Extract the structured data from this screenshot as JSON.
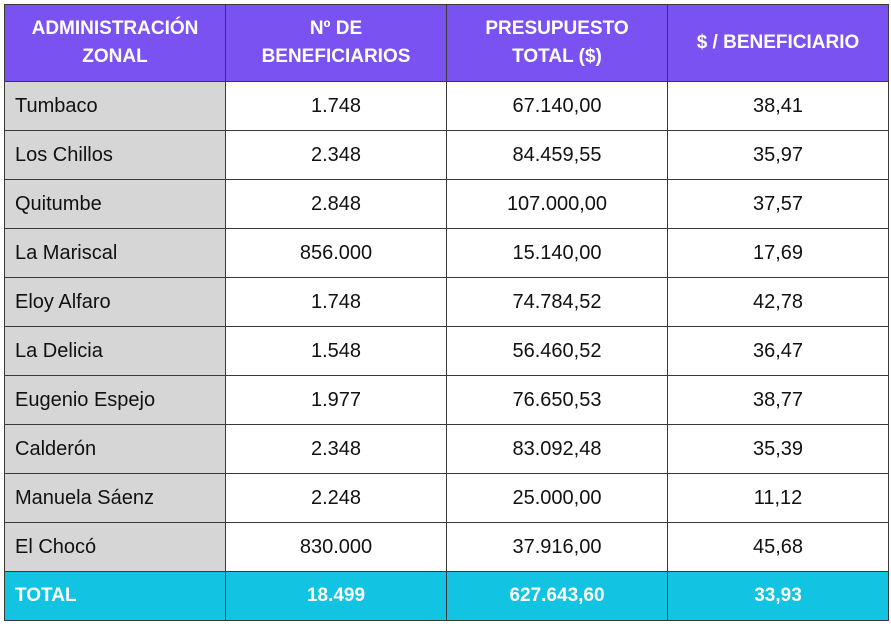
{
  "table": {
    "headers": [
      [
        "ADMINISTRACIÓN",
        "ZONAL"
      ],
      [
        "Nº DE",
        "BENEFICIARIOS"
      ],
      [
        "PRESUPUESTO",
        "TOTAL ($)"
      ],
      [
        "$ / BENEFICIARIO"
      ]
    ],
    "rows": [
      [
        "Tumbaco",
        "1.748",
        "67.140,00",
        "38,41"
      ],
      [
        "Los Chillos",
        "2.348",
        "84.459,55",
        "35,97"
      ],
      [
        "Quitumbe",
        "2.848",
        "107.000,00",
        "37,57"
      ],
      [
        "La Mariscal",
        "856.000",
        "15.140,00",
        "17,69"
      ],
      [
        "Eloy Alfaro",
        "1.748",
        "74.784,52",
        "42,78"
      ],
      [
        "La Delicia",
        "1.548",
        "56.460,52",
        "36,47"
      ],
      [
        "Eugenio Espejo",
        "1.977",
        "76.650,53",
        "38,77"
      ],
      [
        "Calderón",
        "2.348",
        "83.092,48",
        "35,39"
      ],
      [
        "Manuela Sáenz",
        "2.248",
        "25.000,00",
        "11,12"
      ],
      [
        "El Chocó",
        "830.000",
        "37.916,00",
        "45,68"
      ]
    ],
    "total": [
      "TOTAL",
      "18.499",
      "627.643,60",
      "33,93"
    ]
  },
  "colors": {
    "header_bg": "#7b52f2",
    "name_col_bg": "#d6d6d6",
    "total_bg": "#12c3e2",
    "header_text": "#ffffff"
  }
}
